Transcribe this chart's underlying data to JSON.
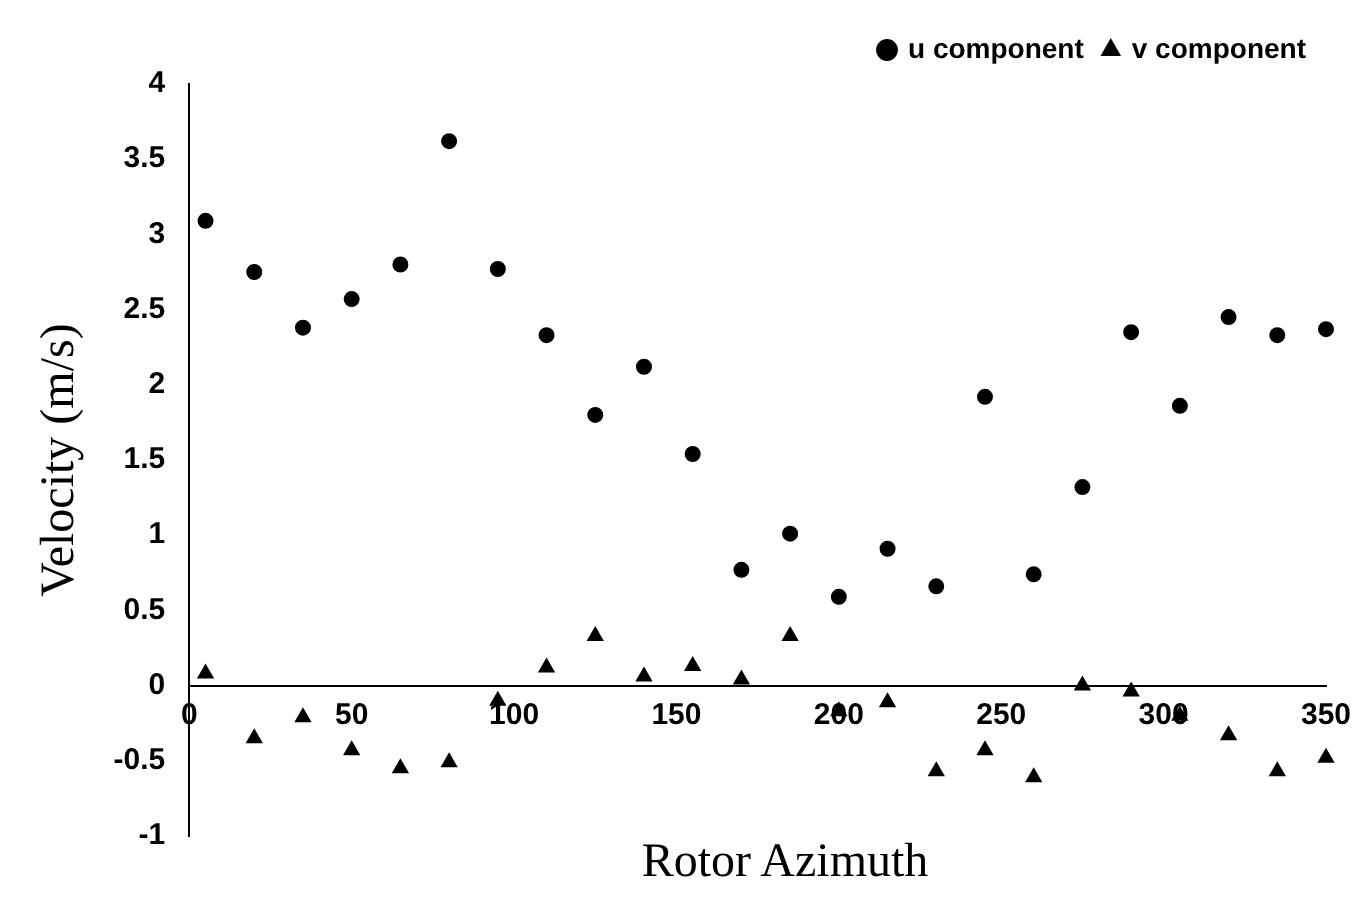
{
  "chart_data": {
    "type": "scatter",
    "xlabel": "Rotor Azimuth",
    "ylabel": "Velocity (m/s)",
    "x": [
      5,
      20,
      35,
      50,
      65,
      80,
      95,
      110,
      125,
      140,
      155,
      170,
      185,
      200,
      215,
      230,
      245,
      260,
      275,
      290,
      305,
      320,
      335,
      350
    ],
    "series": [
      {
        "name": "u component",
        "color": "#000000",
        "marker": "circle",
        "values": [
          3.09,
          2.75,
          2.38,
          2.57,
          2.8,
          3.62,
          2.77,
          2.33,
          1.8,
          2.12,
          1.54,
          0.77,
          1.01,
          0.59,
          0.91,
          0.66,
          1.92,
          0.74,
          1.32,
          2.35,
          1.86,
          2.45,
          2.33,
          2.37
        ]
      },
      {
        "name": "v component",
        "color": "#000000",
        "marker": "triangle",
        "values": [
          0.08,
          -0.35,
          -0.21,
          -0.43,
          -0.55,
          -0.51,
          -0.1,
          0.12,
          0.33,
          0.06,
          0.13,
          0.04,
          0.33,
          -0.17,
          -0.11,
          -0.57,
          -0.43,
          -0.61,
          0.0,
          -0.04,
          -0.2,
          -0.33,
          -0.57,
          -0.48
        ]
      }
    ],
    "xlim": [
      0,
      350
    ],
    "xticks": [
      0,
      50,
      100,
      150,
      200,
      250,
      300,
      350
    ],
    "ylim": [
      -1,
      4
    ],
    "yticks": [
      -1,
      -0.5,
      0,
      0.5,
      1,
      1.5,
      2,
      2.5,
      3,
      3.5,
      4
    ],
    "grid": false,
    "legend": "top right"
  }
}
